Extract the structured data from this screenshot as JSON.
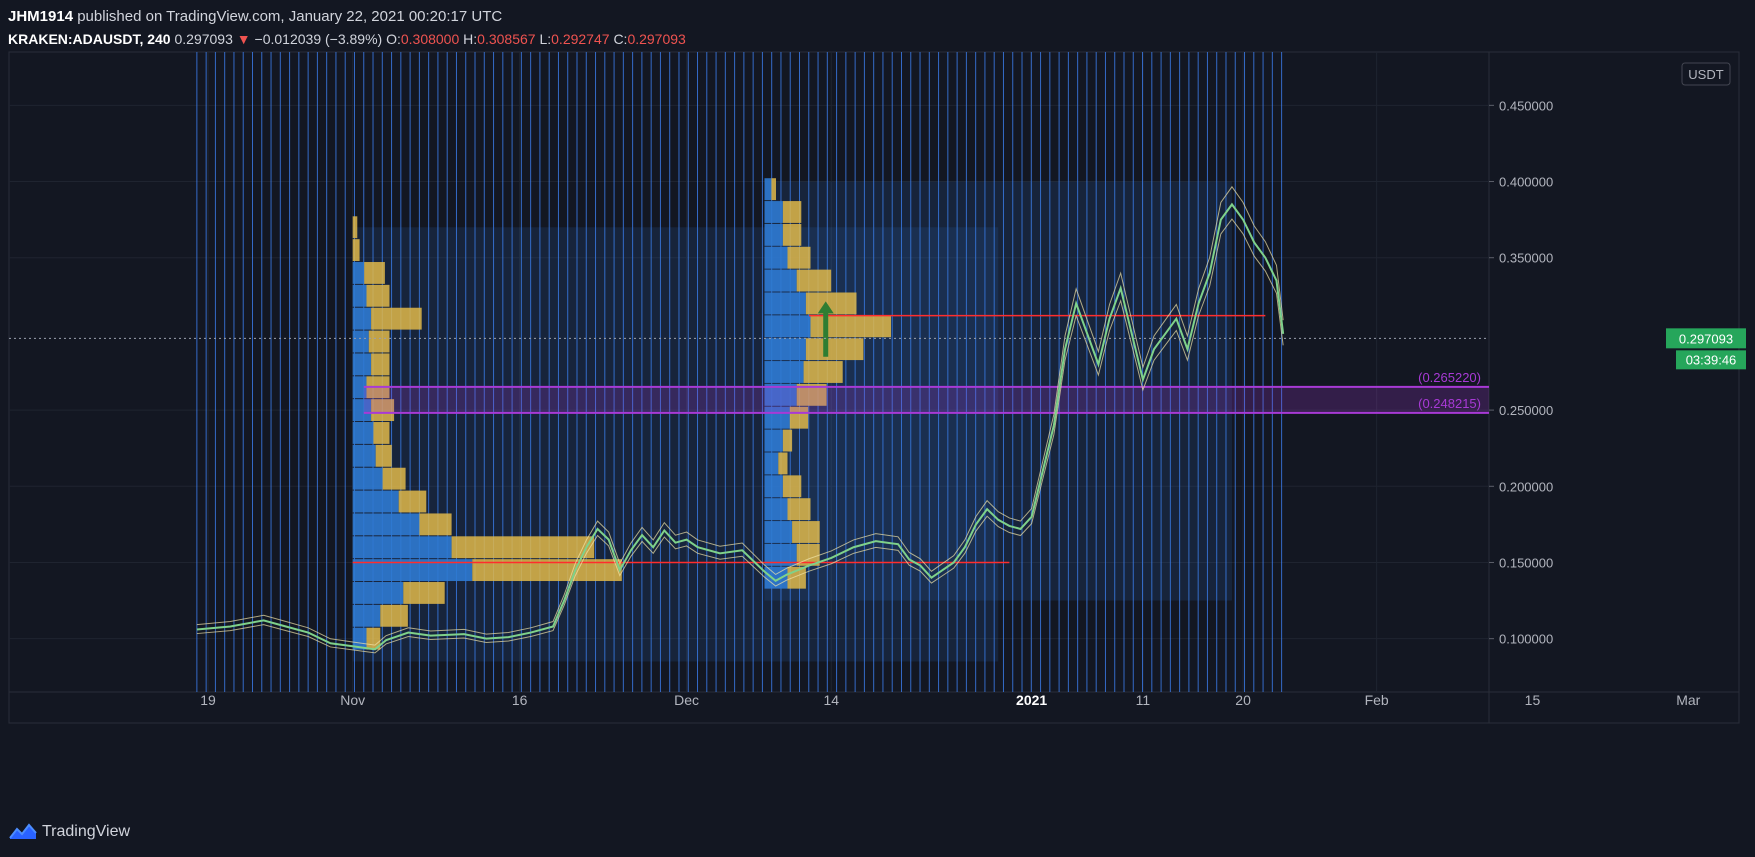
{
  "header": {
    "author": "JHM1914",
    "published_text": "published on TradingView.com, January 22, 2021 00:20:17 UTC",
    "symbol": "KRAKEN:ADAUSDT, 240",
    "last": "0.297093",
    "change_arrow": "▼",
    "change": "−0.012039 (−3.89%)",
    "o_label": "O:",
    "o_value": "0.308000",
    "h_label": "H:",
    "h_value": "0.308567",
    "l_label": "L:",
    "l_value": "0.292747",
    "c_label": "C:",
    "c_value": "0.297093"
  },
  "footer": {
    "brand": "TradingView",
    "logo_icon": "tradingview-logo-icon"
  },
  "colors": {
    "background": "#131722",
    "grid": "#1f2430",
    "price_line": "#7fd18a",
    "candle_outline": "#f2e6a8",
    "volume_up": "#e0b84a",
    "volume_down": "#2f7ad1",
    "session": "#3f86ff",
    "level_line": "#ff2d2d",
    "zone": "#a83ad6",
    "badge": "#26a65b"
  },
  "chart_data": {
    "type": "line",
    "instrument": "KRAKEN:ADAUSDT",
    "interval": "240",
    "currency_label": "USDT",
    "ylim": [
      0.065,
      0.485
    ],
    "y_ticks": [
      {
        "value": 0.45,
        "label": "0.450000"
      },
      {
        "value": 0.4,
        "label": "0.400000"
      },
      {
        "value": 0.35,
        "label": "0.350000"
      },
      {
        "value": 0.25,
        "label": "0.250000"
      },
      {
        "value": 0.2,
        "label": "0.200000"
      },
      {
        "value": 0.15,
        "label": "0.150000"
      },
      {
        "value": 0.1,
        "label": "0.100000"
      }
    ],
    "x_ticks": [
      {
        "day": 0,
        "label": "19",
        "bold": false
      },
      {
        "day": 13,
        "label": "Nov",
        "bold": false
      },
      {
        "day": 28,
        "label": "16",
        "bold": false
      },
      {
        "day": 43,
        "label": "Dec",
        "bold": false
      },
      {
        "day": 56,
        "label": "14",
        "bold": false
      },
      {
        "day": 74,
        "label": "2021",
        "bold": true
      },
      {
        "day": 84,
        "label": "11",
        "bold": false
      },
      {
        "day": 93,
        "label": "20",
        "bold": false
      },
      {
        "day": 105,
        "label": "Feb",
        "bold": false
      },
      {
        "day": 119,
        "label": "15",
        "bold": false
      },
      {
        "day": 133,
        "label": "Mar",
        "bold": false
      }
    ],
    "x_range_days": [
      -1,
      132
    ],
    "last_price": {
      "value": 0.297093,
      "label": "0.297093",
      "countdown": "03:39:46"
    },
    "price_path": [
      [
        -1,
        0.106
      ],
      [
        2,
        0.108
      ],
      [
        5,
        0.112
      ],
      [
        7,
        0.108
      ],
      [
        9,
        0.104
      ],
      [
        11,
        0.097
      ],
      [
        13,
        0.095
      ],
      [
        15,
        0.093
      ],
      [
        16,
        0.099
      ],
      [
        18,
        0.104
      ],
      [
        20,
        0.102
      ],
      [
        23,
        0.103
      ],
      [
        25,
        0.1
      ],
      [
        27,
        0.101
      ],
      [
        29,
        0.104
      ],
      [
        31,
        0.108
      ],
      [
        32,
        0.125
      ],
      [
        33,
        0.145
      ],
      [
        34,
        0.16
      ],
      [
        35,
        0.172
      ],
      [
        36,
        0.165
      ],
      [
        37,
        0.145
      ],
      [
        38,
        0.158
      ],
      [
        39,
        0.168
      ],
      [
        40,
        0.16
      ],
      [
        41,
        0.171
      ],
      [
        42,
        0.163
      ],
      [
        43,
        0.165
      ],
      [
        44,
        0.16
      ],
      [
        46,
        0.156
      ],
      [
        48,
        0.158
      ],
      [
        50,
        0.144
      ],
      [
        51,
        0.138
      ],
      [
        52,
        0.142
      ],
      [
        54,
        0.148
      ],
      [
        56,
        0.153
      ],
      [
        58,
        0.16
      ],
      [
        60,
        0.164
      ],
      [
        62,
        0.162
      ],
      [
        63,
        0.152
      ],
      [
        64,
        0.148
      ],
      [
        65,
        0.14
      ],
      [
        66,
        0.145
      ],
      [
        67,
        0.15
      ],
      [
        68,
        0.16
      ],
      [
        69,
        0.175
      ],
      [
        70,
        0.185
      ],
      [
        71,
        0.178
      ],
      [
        72,
        0.174
      ],
      [
        73,
        0.172
      ],
      [
        74,
        0.18
      ],
      [
        75,
        0.21
      ],
      [
        76,
        0.24
      ],
      [
        77,
        0.29
      ],
      [
        78,
        0.32
      ],
      [
        79,
        0.3
      ],
      [
        80,
        0.28
      ],
      [
        81,
        0.31
      ],
      [
        82,
        0.33
      ],
      [
        83,
        0.3
      ],
      [
        84,
        0.27
      ],
      [
        85,
        0.29
      ],
      [
        86,
        0.3
      ],
      [
        87,
        0.31
      ],
      [
        88,
        0.29
      ],
      [
        89,
        0.32
      ],
      [
        90,
        0.34
      ],
      [
        91,
        0.375
      ],
      [
        92,
        0.385
      ],
      [
        93,
        0.375
      ],
      [
        94,
        0.36
      ],
      [
        95,
        0.35
      ],
      [
        96,
        0.335
      ],
      [
        96.6,
        0.3
      ]
    ],
    "volume_profiles": [
      {
        "day_start": 13,
        "day_end": 71,
        "range": [
          0.085,
          0.37
        ],
        "rows": [
          [
            0.37,
            0.0,
            0.02
          ],
          [
            0.355,
            0.0,
            0.03
          ],
          [
            0.34,
            0.05,
            0.09
          ],
          [
            0.325,
            0.06,
            0.1
          ],
          [
            0.31,
            0.08,
            0.22
          ],
          [
            0.295,
            0.07,
            0.09
          ],
          [
            0.28,
            0.08,
            0.08
          ],
          [
            0.265,
            0.06,
            0.1
          ],
          [
            0.25,
            0.08,
            0.1
          ],
          [
            0.235,
            0.09,
            0.07
          ],
          [
            0.22,
            0.1,
            0.07
          ],
          [
            0.205,
            0.13,
            0.1
          ],
          [
            0.19,
            0.2,
            0.12
          ],
          [
            0.175,
            0.29,
            0.14
          ],
          [
            0.16,
            0.43,
            0.62
          ],
          [
            0.145,
            0.52,
            0.65
          ],
          [
            0.13,
            0.22,
            0.18
          ],
          [
            0.115,
            0.12,
            0.12
          ],
          [
            0.1,
            0.06,
            0.06
          ]
        ],
        "poc": 0.15
      },
      {
        "day_start": 50,
        "day_end": 92,
        "range": [
          0.125,
          0.4
        ],
        "rows": [
          [
            0.395,
            0.03,
            0.02
          ],
          [
            0.38,
            0.08,
            0.08
          ],
          [
            0.365,
            0.08,
            0.08
          ],
          [
            0.35,
            0.1,
            0.1
          ],
          [
            0.335,
            0.14,
            0.15
          ],
          [
            0.32,
            0.18,
            0.22
          ],
          [
            0.305,
            0.2,
            0.35
          ],
          [
            0.29,
            0.18,
            0.25
          ],
          [
            0.275,
            0.17,
            0.17
          ],
          [
            0.26,
            0.14,
            0.13
          ],
          [
            0.245,
            0.11,
            0.08
          ],
          [
            0.23,
            0.08,
            0.04
          ],
          [
            0.215,
            0.06,
            0.04
          ],
          [
            0.2,
            0.08,
            0.08
          ],
          [
            0.185,
            0.1,
            0.1
          ],
          [
            0.17,
            0.12,
            0.12
          ],
          [
            0.155,
            0.14,
            0.1
          ],
          [
            0.14,
            0.1,
            0.08
          ]
        ],
        "poc": 0.312
      }
    ],
    "levels": [
      {
        "value": 0.15,
        "from_day": 13,
        "to_day": 72
      },
      {
        "value": 0.312,
        "from_day": 54,
        "to_day": 95
      }
    ],
    "zone": {
      "low": 0.248215,
      "high": 0.26522,
      "from_day": 14,
      "low_label": "(0.248215)",
      "high_label": "(0.265220)"
    },
    "arrow": {
      "day": 55.5,
      "from": 0.285,
      "to": 0.32
    },
    "sessions": {
      "from_day": -1,
      "to_day": 96.8,
      "step_days": 0.833
    }
  }
}
